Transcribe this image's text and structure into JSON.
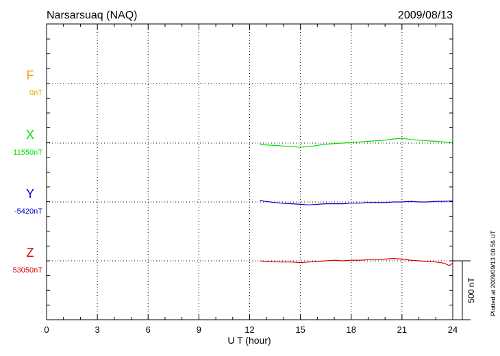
{
  "chart_data": {
    "type": "line",
    "title": "Narsarsuaq (NAQ)",
    "date": "2009/08/13",
    "xlabel": "U T (hour)",
    "xlim": [
      0,
      24
    ],
    "xticks": [
      "0",
      "3",
      "6",
      "9",
      "12",
      "15",
      "18",
      "21",
      "24"
    ],
    "scale_bar_label": "500 nT",
    "scale_bar_nT": 500,
    "plotted_note": "Plotted at 2009/09/13 00:56 UT",
    "series": [
      {
        "name": "F",
        "baseline_label": "0nT",
        "color": "#f0a000",
        "points": []
      },
      {
        "name": "X",
        "baseline_label": "11550nT",
        "color": "#00dd00",
        "points": [
          [
            12.6,
            -10
          ],
          [
            12.9,
            -15
          ],
          [
            13.5,
            -20
          ],
          [
            14.0,
            -25
          ],
          [
            14.5,
            -30
          ],
          [
            15.0,
            -35
          ],
          [
            15.5,
            -30
          ],
          [
            16.0,
            -20
          ],
          [
            16.5,
            -10
          ],
          [
            17.0,
            -5
          ],
          [
            17.5,
            0
          ],
          [
            18.0,
            5
          ],
          [
            18.5,
            10
          ],
          [
            19.0,
            15
          ],
          [
            19.5,
            20
          ],
          [
            20.0,
            25
          ],
          [
            20.5,
            35
          ],
          [
            21.0,
            40
          ],
          [
            21.5,
            30
          ],
          [
            22.0,
            25
          ],
          [
            22.5,
            20
          ],
          [
            23.0,
            15
          ],
          [
            23.5,
            10
          ],
          [
            24.0,
            5
          ]
        ]
      },
      {
        "name": "Y",
        "baseline_label": "-5420nT",
        "color": "#0000cc",
        "points": [
          [
            12.6,
            15
          ],
          [
            12.9,
            5
          ],
          [
            13.8,
            -10
          ],
          [
            14.5,
            -15
          ],
          [
            15.0,
            -20
          ],
          [
            15.5,
            -25
          ],
          [
            16.0,
            -20
          ],
          [
            16.5,
            -15
          ],
          [
            17.0,
            -15
          ],
          [
            17.5,
            -15
          ],
          [
            18.0,
            -10
          ],
          [
            18.5,
            -10
          ],
          [
            19.0,
            -5
          ],
          [
            19.5,
            -5
          ],
          [
            20.0,
            -5
          ],
          [
            20.5,
            0
          ],
          [
            21.0,
            0
          ],
          [
            21.5,
            5
          ],
          [
            22.0,
            0
          ],
          [
            22.5,
            0
          ],
          [
            23.0,
            5
          ],
          [
            23.5,
            5
          ],
          [
            24.0,
            10
          ]
        ]
      },
      {
        "name": "Z",
        "baseline_label": "53050nT",
        "color": "#dd0000",
        "points": [
          [
            12.6,
            0
          ],
          [
            12.9,
            -5
          ],
          [
            13.8,
            -10
          ],
          [
            14.5,
            -10
          ],
          [
            15.0,
            -15
          ],
          [
            15.5,
            -10
          ],
          [
            16.0,
            -5
          ],
          [
            16.5,
            0
          ],
          [
            17.0,
            5
          ],
          [
            17.5,
            0
          ],
          [
            18.0,
            5
          ],
          [
            18.5,
            5
          ],
          [
            19.0,
            10
          ],
          [
            19.5,
            10
          ],
          [
            20.0,
            15
          ],
          [
            20.5,
            20
          ],
          [
            21.0,
            15
          ],
          [
            21.5,
            5
          ],
          [
            22.0,
            0
          ],
          [
            22.5,
            -5
          ],
          [
            23.0,
            -10
          ],
          [
            23.5,
            -20
          ],
          [
            23.8,
            -40
          ],
          [
            24.0,
            -20
          ]
        ]
      }
    ]
  }
}
